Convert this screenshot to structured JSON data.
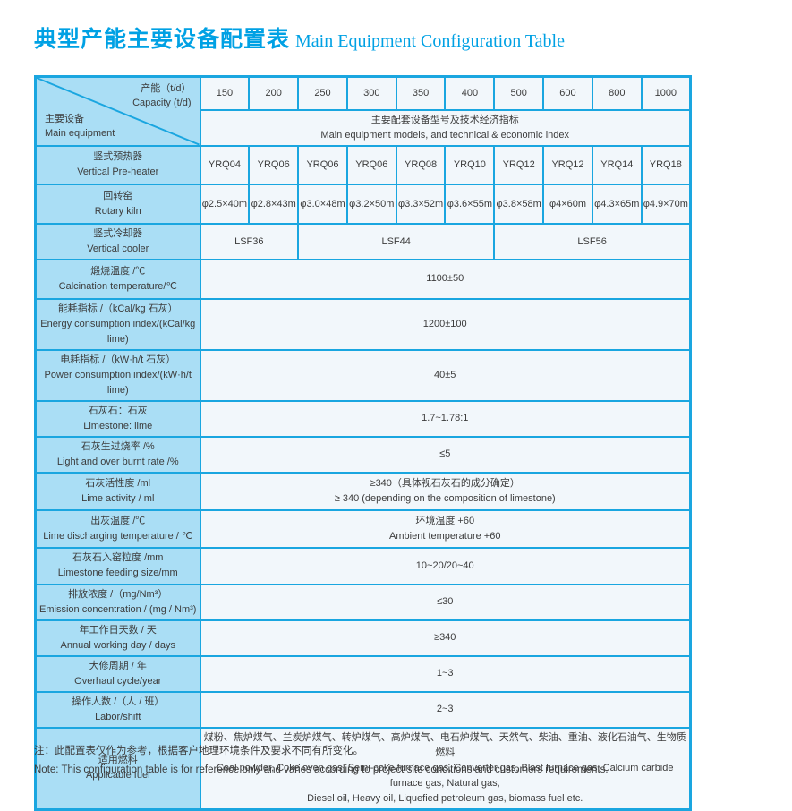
{
  "title": {
    "zh": "典型产能主要设备配置表",
    "en": "Main Equipment Configuration Table"
  },
  "colors": {
    "accent": "#1aa6e0",
    "label_bg": "#aadef5",
    "cell_bg": "#f2f7fb",
    "title": "#00a1e4",
    "text": "#3c3c3c"
  },
  "table": {
    "corner": {
      "capacity_zh": "产能（t/d）",
      "capacity_en": "Capacity (t/d)",
      "equipment_zh": "主要设备",
      "equipment_en": "Main equipment"
    },
    "capacities": [
      "150",
      "200",
      "250",
      "300",
      "350",
      "400",
      "500",
      "600",
      "800",
      "1000"
    ],
    "subheader": {
      "zh": "主要配套设备型号及技术经济指标",
      "en": "Main equipment models, and technical & economic index"
    },
    "rows": [
      {
        "id": "vertical-preheater",
        "label_zh": "竖式预热器",
        "label_en": "Vertical Pre-heater",
        "type": "cells",
        "values": [
          "YRQ04",
          "YRQ06",
          "YRQ06",
          "YRQ06",
          "YRQ08",
          "YRQ10",
          "YRQ12",
          "YRQ12",
          "YRQ14",
          "YRQ18"
        ]
      },
      {
        "id": "rotary-kiln",
        "label_zh": "回转窑",
        "label_en": "Rotary kiln",
        "type": "cells",
        "values": [
          "φ2.5×40m",
          "φ2.8×43m",
          "φ3.0×48m",
          "φ3.2×50m",
          "φ3.3×52m",
          "φ3.6×55m",
          "φ3.8×58m",
          "φ4×60m",
          "φ4.3×65m",
          "φ4.9×70m"
        ]
      },
      {
        "id": "vertical-cooler",
        "label_zh": "竖式冷却器",
        "label_en": "Vertical cooler",
        "type": "groups",
        "groups": [
          {
            "span": 2,
            "value": "LSF36"
          },
          {
            "span": 4,
            "value": "LSF44"
          },
          {
            "span": 4,
            "value": "LSF56"
          }
        ]
      },
      {
        "id": "calcination-temperature",
        "label_zh": "煅烧温度 /℃",
        "label_en": "Calcination temperature/℃",
        "type": "merged",
        "lines": [
          "1100±50"
        ]
      },
      {
        "id": "energy-consumption-index",
        "label_zh": "能耗指标 /（kCal/kg 石灰）",
        "label_en": "Energy consumption index/(kCal/kg lime)",
        "type": "merged",
        "lines": [
          "1200±100"
        ]
      },
      {
        "id": "power-consumption-index",
        "label_zh": "电耗指标 /（kW·h/t 石灰）",
        "label_en": "Power consumption index/(kW·h/t lime)",
        "type": "merged",
        "lines": [
          "40±5"
        ]
      },
      {
        "id": "limestone-lime-ratio",
        "label_zh": "石灰石：石灰",
        "label_en": "Limestone:  lime",
        "type": "merged",
        "lines": [
          "1.7~1.78:1"
        ]
      },
      {
        "id": "light-over-burnt-rate",
        "label_zh": "石灰生过烧率 /%",
        "label_en": "Light and over burnt rate /%",
        "type": "merged",
        "lines": [
          "≤5"
        ]
      },
      {
        "id": "lime-activity",
        "label_zh": "石灰活性度 /ml",
        "label_en": "Lime activity / ml",
        "type": "merged",
        "lines": [
          "≥340（具体视石灰石的成分确定）",
          "≥ 340 (depending on the composition of limestone)"
        ]
      },
      {
        "id": "lime-discharging-temperature",
        "label_zh": "出灰温度 /℃",
        "label_en": "Lime discharging temperature / ℃",
        "type": "merged",
        "lines": [
          "环境温度 +60",
          "Ambient temperature +60"
        ]
      },
      {
        "id": "limestone-feeding-size",
        "label_zh": "石灰石入窑粒度 /mm",
        "label_en": "Limestone feeding size/mm",
        "type": "merged",
        "lines": [
          "10~20/20~40"
        ]
      },
      {
        "id": "emission-concentration",
        "label_zh": "排放浓度 /（mg/Nm³）",
        "label_en": "Emission concentration / (mg / Nm³)",
        "type": "merged",
        "lines": [
          "≤30"
        ]
      },
      {
        "id": "annual-working-days",
        "label_zh": "年工作日天数 / 天",
        "label_en": "Annual working day / days",
        "type": "merged",
        "lines": [
          "≥340"
        ]
      },
      {
        "id": "overhaul-cycle",
        "label_zh": "大修周期 / 年",
        "label_en": "Overhaul cycle/year",
        "type": "merged",
        "lines": [
          "1~3"
        ]
      },
      {
        "id": "labor-per-shift",
        "label_zh": "操作人数 /（人 / 班）",
        "label_en": "Labor/shift",
        "type": "merged",
        "lines": [
          "2~3"
        ]
      },
      {
        "id": "applicable-fuel",
        "label_zh": "适用燃料",
        "label_en": "Applicable fuel",
        "type": "merged",
        "lines": [
          "煤粉、焦炉煤气、兰炭炉煤气、转炉煤气、高炉煤气、电石炉煤气、天然气、柴油、重油、液化石油气、生物质燃料",
          "Coal powder, Coke oven gas, Semi-coke furnace gas, Converter gas, Blast furnace gas, Calcium carbide furnace gas, Natural gas,",
          "Diesel oil, Heavy oil, Liquefied petroleum gas, biomass fuel etc."
        ]
      }
    ]
  },
  "notes": {
    "zh": "注：此配置表仅作为参考，根据客户地理环境条件及要求不同有所变化。",
    "en": "Note: This configuration table is for reference only and varies according to project site conditions and customers requirements."
  }
}
